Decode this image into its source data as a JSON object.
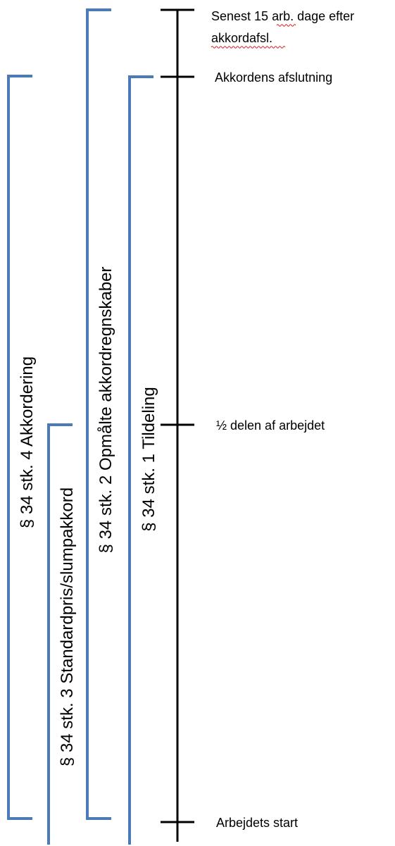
{
  "colors": {
    "bracket": "#4A7BB7",
    "axis": "#000000",
    "spellcheck": "#D02020",
    "text": "#000000"
  },
  "timeline": {
    "marks": [
      {
        "id": "deadline",
        "lines": [
          "Senest 15 arb. dage efter",
          "akkordafsl."
        ]
      },
      {
        "id": "end",
        "lines": [
          "Akkordens afslutning"
        ]
      },
      {
        "id": "half",
        "lines": [
          "½ delen af arbejdet"
        ]
      },
      {
        "id": "start",
        "lines": [
          "Arbejdets start"
        ]
      }
    ]
  },
  "brackets": [
    {
      "id": "akkordering",
      "label": "§ 34 stk. 4 Akkordering"
    },
    {
      "id": "standardpris",
      "label": "§ 34 stk. 3 Standardpris/slumpakkord"
    },
    {
      "id": "opmaalte",
      "label": "§ 34 stk. 2 Opmålte akkordregnskaber"
    },
    {
      "id": "tildeling",
      "label": "§ 34 stk. 1 Tildeling"
    }
  ]
}
